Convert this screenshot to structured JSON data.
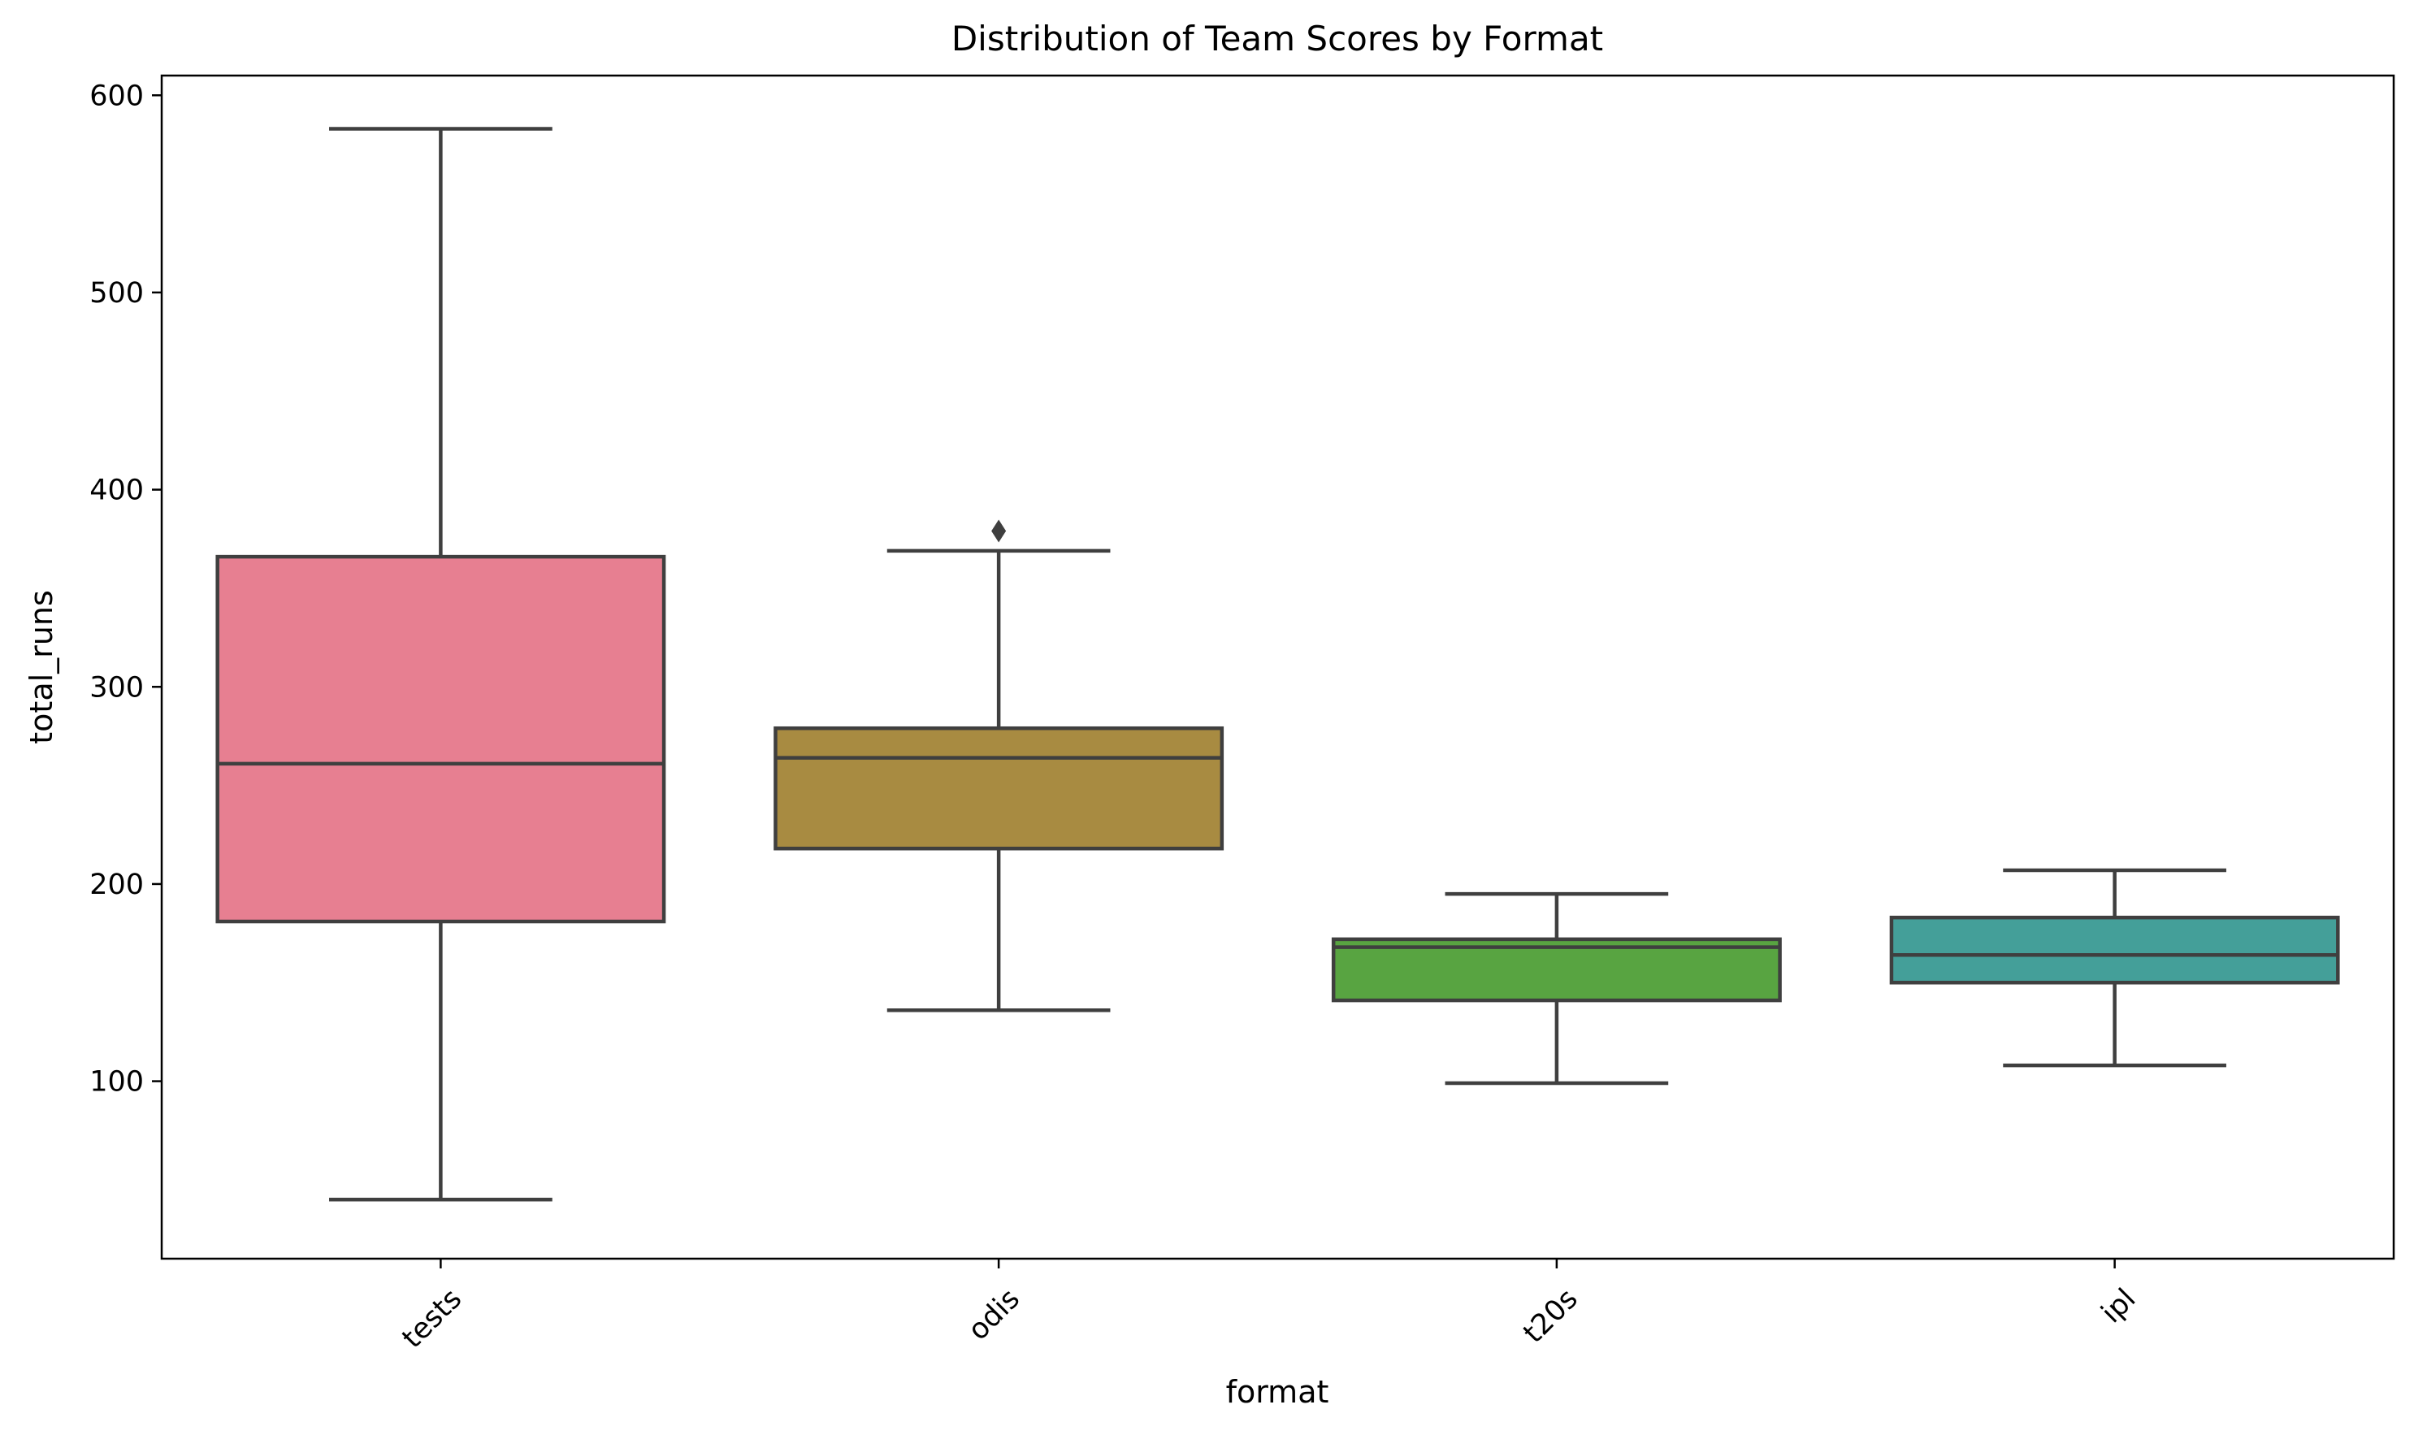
{
  "chart_data": {
    "type": "box",
    "title": "Distribution of Team Scores by Format",
    "xlabel": "format",
    "ylabel": "total_runs",
    "ylim": [
      10,
      610
    ],
    "yticks": [
      100,
      200,
      300,
      400,
      500,
      600
    ],
    "grid": false,
    "legend": "none",
    "categories": [
      "tests",
      "odis",
      "t20s",
      "ipl"
    ],
    "boxes": [
      {
        "category": "tests",
        "whisker_low": 40,
        "q1": 181,
        "median": 261,
        "q3": 366,
        "whisker_high": 583,
        "outliers": [],
        "color": "#e77f91"
      },
      {
        "category": "odis",
        "whisker_low": 136,
        "q1": 218,
        "median": 264,
        "q3": 279,
        "whisker_high": 369,
        "outliers": [
          379
        ],
        "color": "#a88b41"
      },
      {
        "category": "t20s",
        "whisker_low": 99,
        "q1": 141,
        "median": 168,
        "q3": 172,
        "whisker_high": 195,
        "outliers": [],
        "color": "#58a441"
      },
      {
        "category": "ipl",
        "whisker_low": 108,
        "q1": 150,
        "median": 164,
        "q3": 183,
        "whisker_high": 207,
        "outliers": [],
        "color": "#449f99"
      }
    ]
  }
}
